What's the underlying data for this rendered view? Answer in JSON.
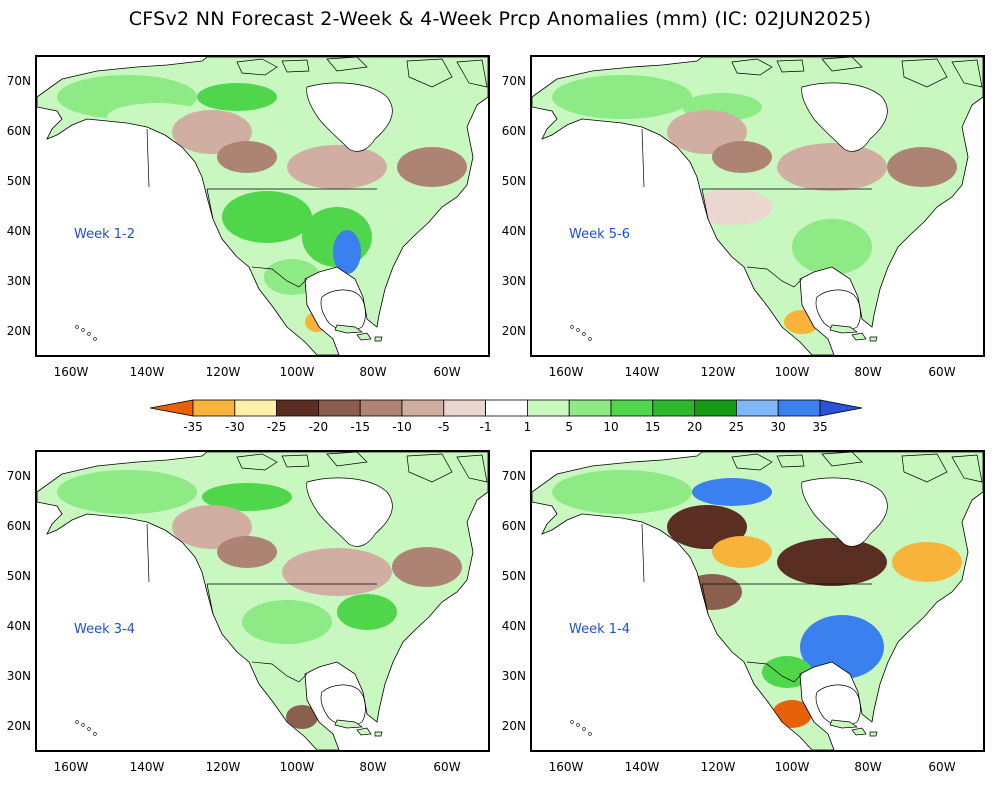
{
  "title": "CFSv2 NN Forecast 2-Week & 4-Week Prcp Anomalies (mm) (IC: 02JUN2025)",
  "panels": [
    {
      "label": "Week 1-2"
    },
    {
      "label": "Week 5-6"
    },
    {
      "label": "Week 3-4"
    },
    {
      "label": "Week 1-4"
    }
  ],
  "lat_labels": [
    "70N",
    "60N",
    "50N",
    "40N",
    "30N",
    "20N"
  ],
  "lon_labels": [
    "160W",
    "140W",
    "120W",
    "100W",
    "80W",
    "60W"
  ],
  "colorbar": {
    "ticks": [
      "-35",
      "-30",
      "-25",
      "-20",
      "-15",
      "-10",
      "-5",
      "-1",
      "1",
      "5",
      "10",
      "15",
      "20",
      "25",
      "30",
      "35"
    ],
    "colors": [
      "#e8600a",
      "#f8b33a",
      "#fff0a8",
      "#5a2e22",
      "#8c5e4e",
      "#ad8474",
      "#d0afa2",
      "#ead7cf",
      "#ffffff",
      "#c8f7c0",
      "#8eea84",
      "#4fd64b",
      "#2db82d",
      "#149a14",
      "#7eb8f6",
      "#3a80ee",
      "#2a54d8"
    ]
  }
}
